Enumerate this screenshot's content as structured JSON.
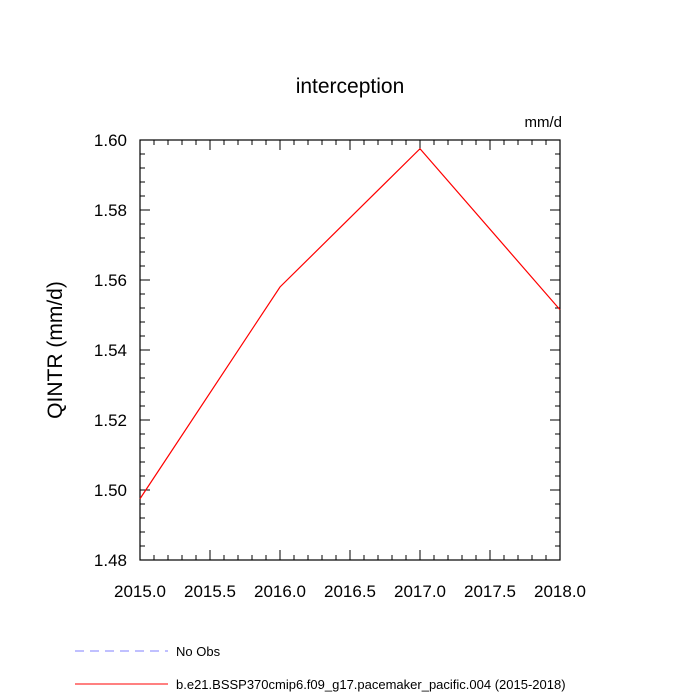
{
  "chart_data": {
    "type": "line",
    "title": "interception",
    "units": "mm/d",
    "xlabel": "",
    "ylabel": "QINTR  (mm/d)",
    "xlim": [
      2015.0,
      2018.0
    ],
    "ylim": [
      1.48,
      1.6
    ],
    "x_ticks": [
      "2015.0",
      "2015.5",
      "2016.0",
      "2016.5",
      "2017.0",
      "2017.5",
      "2018.0"
    ],
    "y_ticks": [
      "1.48",
      "1.50",
      "1.52",
      "1.54",
      "1.56",
      "1.58",
      "1.60"
    ],
    "grid": false,
    "legend_position": "bottom",
    "series": [
      {
        "name": "b.e21.BSSP370cmip6.f09_g17.pacemaker_pacific.004 (2015-2018)",
        "color": "#ff0000",
        "style": "solid",
        "x": [
          2015,
          2016,
          2017,
          2018
        ],
        "y": [
          1.4975,
          1.558,
          1.5975,
          1.5515
        ]
      }
    ],
    "legend": [
      {
        "label": "No Obs",
        "color": "#8080ff",
        "style": "dashed"
      },
      {
        "label": "b.e21.BSSP370cmip6.f09_g17.pacemaker_pacific.004 (2015-2018)",
        "color": "#ff0000",
        "style": "solid"
      }
    ]
  }
}
